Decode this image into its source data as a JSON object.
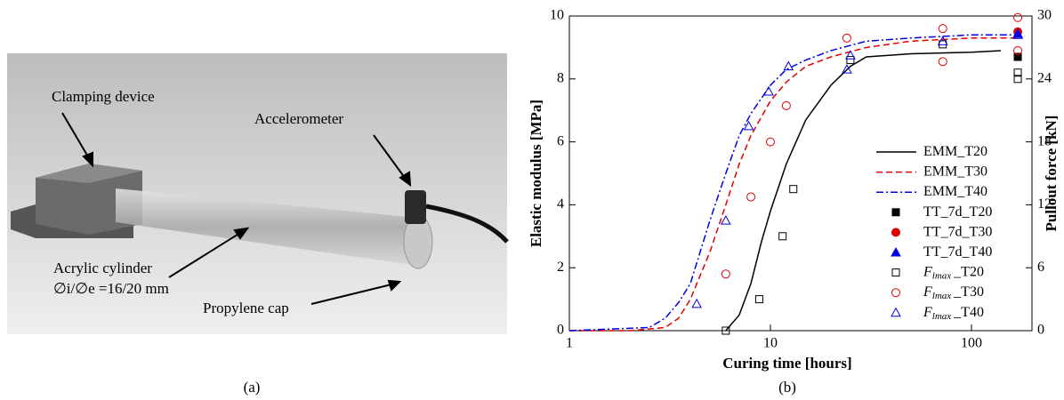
{
  "panel_a": {
    "labels": [
      "Clamping device",
      "Accelerometer",
      "Acrylic cylinder",
      "∅i/∅e =16/20 mm",
      "Propylene cap"
    ],
    "caption": "(a)"
  },
  "chart_data": {
    "type": "line",
    "caption": "(b)",
    "x_label": "Curing time [hours]",
    "y_label": "Elastic modulus [MPa]",
    "y2_label": "Pullout force [kN]",
    "xscale": "log",
    "xlim": [
      1,
      200
    ],
    "xticks": [
      1,
      10,
      100
    ],
    "ylim": [
      0,
      10
    ],
    "yticks": [
      0,
      2,
      4,
      6,
      8,
      10
    ],
    "y2lim": [
      0,
      30
    ],
    "y2ticks": [
      0,
      6,
      12,
      18,
      24,
      30
    ],
    "legend": "right",
    "series": [
      {
        "name": "EMM_T20",
        "color": "#000000",
        "line_style": "solid",
        "x": [
          6,
          7,
          8,
          9,
          10,
          12,
          15,
          20,
          25,
          30,
          50,
          100,
          140
        ],
        "values": [
          0,
          0.5,
          1.5,
          2.8,
          3.8,
          5.3,
          6.7,
          7.8,
          8.4,
          8.7,
          8.8,
          8.85,
          8.9
        ]
      },
      {
        "name": "EMM_T30",
        "color": "#e00000",
        "line_style": "dashed",
        "x": [
          1,
          2,
          3,
          3.5,
          4,
          5,
          6,
          7,
          8,
          10,
          12,
          15,
          20,
          30,
          50,
          100,
          170
        ],
        "values": [
          0,
          0,
          0.1,
          0.4,
          1.0,
          2.5,
          4.0,
          5.3,
          6.2,
          7.3,
          7.9,
          8.4,
          8.7,
          9.0,
          9.2,
          9.3,
          9.3
        ]
      },
      {
        "name": "EMM_T40",
        "color": "#0000e0",
        "line_style": "dashdot",
        "x": [
          1,
          2.5,
          3,
          3.5,
          4,
          5,
          6,
          7,
          8,
          10,
          12,
          15,
          20,
          30,
          50,
          100,
          170
        ],
        "values": [
          0,
          0.1,
          0.4,
          0.9,
          1.5,
          3.5,
          5.0,
          6.2,
          6.9,
          7.8,
          8.3,
          8.6,
          8.9,
          9.2,
          9.3,
          9.4,
          9.4
        ]
      },
      {
        "name": "TT_7d_T20",
        "color": "#000000",
        "marker": "square",
        "filled": true,
        "axis": "y2",
        "x": [
          170
        ],
        "values": [
          26.1
        ]
      },
      {
        "name": "TT_7d_T30",
        "color": "#e00000",
        "marker": "circle",
        "filled": true,
        "axis": "y2",
        "x": [
          170
        ],
        "values": [
          28.5
        ]
      },
      {
        "name": "TT_7d_T40",
        "color": "#0000e0",
        "marker": "triangle",
        "filled": true,
        "axis": "y2",
        "x": [
          170
        ],
        "values": [
          28.3
        ]
      },
      {
        "name": "F",
        "name_sub": "lmax",
        "name_suffix": "_T20",
        "color": "#000000",
        "marker": "square",
        "filled": false,
        "axis": "y2",
        "x": [
          6,
          8.8,
          11.5,
          13,
          25,
          72,
          170,
          170
        ],
        "values": [
          0,
          3,
          9,
          13.5,
          25.8,
          27.3,
          24.6,
          24
        ]
      },
      {
        "name": "F",
        "name_sub": "lmax",
        "name_suffix": "_T30",
        "color": "#e00000",
        "marker": "circle",
        "filled": false,
        "axis": "y2",
        "x": [
          6,
          8,
          10,
          12,
          24,
          72,
          72,
          170,
          170
        ],
        "values": [
          5.4,
          12.75,
          18,
          21.45,
          27.9,
          28.8,
          25.65,
          29.85,
          26.7
        ]
      },
      {
        "name": "F",
        "name_sub": "lmax",
        "name_suffix": "_T40",
        "color": "#0000e0",
        "marker": "triangle",
        "filled": false,
        "axis": "y2",
        "x": [
          4.3,
          6,
          7.8,
          9.8,
          12.3,
          24,
          25,
          72,
          170
        ],
        "values": [
          2.55,
          10.5,
          19.5,
          22.8,
          25.2,
          24.9,
          26.25,
          27.6,
          28.2
        ]
      }
    ]
  }
}
